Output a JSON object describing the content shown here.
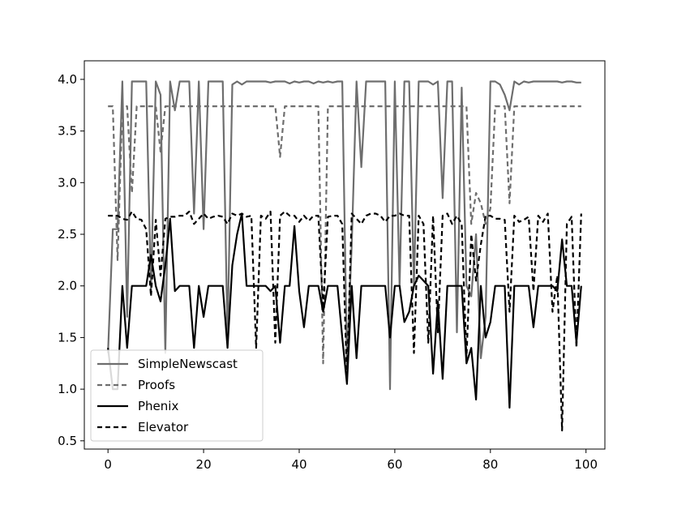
{
  "chart_data": {
    "type": "line",
    "title": "",
    "xlabel": "",
    "ylabel": "",
    "xlim": [
      -4.95,
      103.95
    ],
    "ylim": [
      0.42,
      4.18
    ],
    "xticks": [
      0,
      20,
      40,
      60,
      80,
      100
    ],
    "yticks": [
      0.5,
      1.0,
      1.5,
      2.0,
      2.5,
      3.0,
      3.5,
      4.0
    ],
    "xtick_labels": [
      "0",
      "20",
      "40",
      "60",
      "80",
      "100"
    ],
    "ytick_labels": [
      "0.5",
      "1.0",
      "1.5",
      "2.0",
      "2.5",
      "3.0",
      "3.5",
      "4.0"
    ],
    "grid": false,
    "legend_position": "lower-left",
    "x": [
      0,
      1,
      2,
      3,
      4,
      5,
      6,
      7,
      8,
      9,
      10,
      11,
      12,
      13,
      14,
      15,
      16,
      17,
      18,
      19,
      20,
      21,
      22,
      23,
      24,
      25,
      26,
      27,
      28,
      29,
      30,
      31,
      32,
      33,
      34,
      35,
      36,
      37,
      38,
      39,
      40,
      41,
      42,
      43,
      44,
      45,
      46,
      47,
      48,
      49,
      50,
      51,
      52,
      53,
      54,
      55,
      56,
      57,
      58,
      59,
      60,
      61,
      62,
      63,
      64,
      65,
      66,
      67,
      68,
      69,
      70,
      71,
      72,
      73,
      74,
      75,
      76,
      77,
      78,
      79,
      80,
      81,
      82,
      83,
      84,
      85,
      86,
      87,
      88,
      89,
      90,
      91,
      92,
      93,
      94,
      95,
      96,
      97,
      98,
      99
    ],
    "series": [
      {
        "name": "SimpleNewscast",
        "color": "#6e6e6e",
        "dash": "solid",
        "values": [
          1.35,
          2.55,
          2.55,
          3.98,
          1.7,
          3.98,
          3.98,
          3.98,
          3.98,
          1.95,
          3.98,
          3.85,
          1.35,
          3.98,
          3.7,
          3.98,
          3.98,
          3.98,
          2.7,
          3.98,
          2.55,
          3.98,
          3.98,
          3.98,
          3.98,
          1.5,
          3.95,
          3.98,
          3.95,
          3.98,
          3.98,
          3.98,
          3.98,
          3.98,
          3.97,
          3.98,
          3.98,
          3.98,
          3.96,
          3.98,
          3.97,
          3.98,
          3.98,
          3.96,
          3.98,
          3.97,
          3.98,
          3.97,
          3.98,
          3.98,
          1.25,
          2.4,
          3.98,
          3.15,
          3.98,
          3.98,
          3.98,
          3.98,
          3.98,
          1.0,
          3.98,
          2.0,
          3.98,
          3.98,
          2.0,
          3.98,
          3.98,
          3.98,
          3.95,
          3.98,
          2.85,
          3.98,
          3.98,
          1.55,
          3.92,
          2.0,
          1.9,
          2.5,
          1.3,
          1.7,
          3.98,
          3.98,
          3.95,
          3.85,
          3.7,
          3.98,
          3.95,
          3.98,
          3.97,
          3.98,
          3.98,
          3.98,
          3.98,
          3.98,
          3.98,
          3.97,
          3.98,
          3.98,
          3.97,
          3.97
        ]
      },
      {
        "name": "Proofs",
        "color": "#6e6e6e",
        "dash": "dashed",
        "values": [
          3.74,
          3.74,
          2.25,
          3.74,
          3.74,
          2.9,
          3.74,
          3.74,
          3.74,
          3.74,
          3.74,
          3.3,
          3.74,
          3.74,
          3.74,
          3.74,
          3.74,
          3.74,
          3.74,
          3.74,
          3.74,
          3.74,
          3.74,
          3.74,
          3.74,
          3.74,
          3.74,
          3.74,
          3.74,
          3.74,
          3.74,
          3.74,
          3.74,
          3.74,
          3.74,
          3.74,
          3.25,
          3.74,
          3.74,
          3.74,
          3.74,
          3.74,
          3.74,
          3.74,
          3.74,
          1.25,
          3.74,
          3.74,
          3.74,
          3.74,
          3.74,
          3.74,
          3.74,
          3.74,
          3.74,
          3.74,
          3.74,
          3.74,
          3.74,
          3.74,
          3.74,
          3.74,
          3.74,
          3.74,
          3.74,
          3.74,
          3.74,
          3.74,
          3.74,
          3.74,
          3.74,
          3.74,
          3.74,
          3.74,
          3.74,
          3.74,
          2.6,
          2.9,
          2.8,
          2.6,
          2.75,
          3.74,
          3.74,
          3.74,
          2.8,
          3.74,
          3.74,
          3.74,
          3.74,
          3.74,
          3.74,
          3.74,
          3.74,
          3.74,
          3.74,
          3.74,
          3.74,
          3.74,
          3.74,
          3.74
        ]
      },
      {
        "name": "Phenix",
        "color": "#000000",
        "dash": "solid",
        "values": [
          1.4,
          1.0,
          1.0,
          2.0,
          1.4,
          2.0,
          2.0,
          2.0,
          2.0,
          2.3,
          2.0,
          1.85,
          2.2,
          2.65,
          1.95,
          2.0,
          2.0,
          2.0,
          1.4,
          2.0,
          1.7,
          2.0,
          2.0,
          2.0,
          2.0,
          1.4,
          2.2,
          2.5,
          2.7,
          2.0,
          2.0,
          2.0,
          2.0,
          2.0,
          1.95,
          2.0,
          1.45,
          2.0,
          2.0,
          2.58,
          1.95,
          1.6,
          2.0,
          2.0,
          2.0,
          1.75,
          2.0,
          2.0,
          2.0,
          1.5,
          1.05,
          2.0,
          1.3,
          2.0,
          2.0,
          2.0,
          2.0,
          2.0,
          2.0,
          1.5,
          2.0,
          2.0,
          1.65,
          1.75,
          2.0,
          2.1,
          2.05,
          2.0,
          1.15,
          1.85,
          1.1,
          2.0,
          2.0,
          2.0,
          2.0,
          1.25,
          1.4,
          0.9,
          2.0,
          1.5,
          1.65,
          2.0,
          2.0,
          2.0,
          0.82,
          2.0,
          2.0,
          2.0,
          2.0,
          1.6,
          2.0,
          2.0,
          2.0,
          2.0,
          1.95,
          2.45,
          2.0,
          2.0,
          1.45,
          2.0
        ]
      },
      {
        "name": "Elevator",
        "color": "#000000",
        "dash": "dashed",
        "values": [
          2.68,
          2.68,
          2.68,
          2.65,
          2.64,
          2.72,
          2.65,
          2.64,
          2.55,
          1.9,
          2.64,
          2.1,
          2.65,
          2.67,
          2.67,
          2.68,
          2.68,
          2.72,
          2.6,
          2.65,
          2.7,
          2.65,
          2.67,
          2.68,
          2.67,
          2.6,
          2.7,
          2.68,
          2.7,
          2.67,
          2.68,
          1.4,
          2.68,
          2.65,
          2.72,
          1.45,
          2.68,
          2.72,
          2.68,
          2.68,
          2.62,
          2.68,
          2.63,
          2.68,
          2.68,
          1.78,
          2.67,
          2.68,
          2.68,
          2.6,
          1.1,
          2.7,
          2.65,
          2.6,
          2.68,
          2.7,
          2.7,
          2.68,
          2.62,
          2.68,
          2.68,
          2.7,
          2.68,
          2.68,
          1.35,
          2.68,
          2.6,
          1.45,
          2.68,
          1.55,
          2.68,
          2.7,
          2.6,
          2.68,
          2.6,
          1.3,
          2.5,
          2.05,
          2.4,
          2.68,
          2.68,
          2.65,
          2.65,
          2.64,
          1.75,
          2.68,
          2.62,
          2.64,
          2.67,
          1.95,
          2.68,
          2.62,
          2.7,
          1.75,
          2.1,
          0.6,
          2.6,
          2.67,
          1.4,
          2.7
        ]
      }
    ]
  }
}
